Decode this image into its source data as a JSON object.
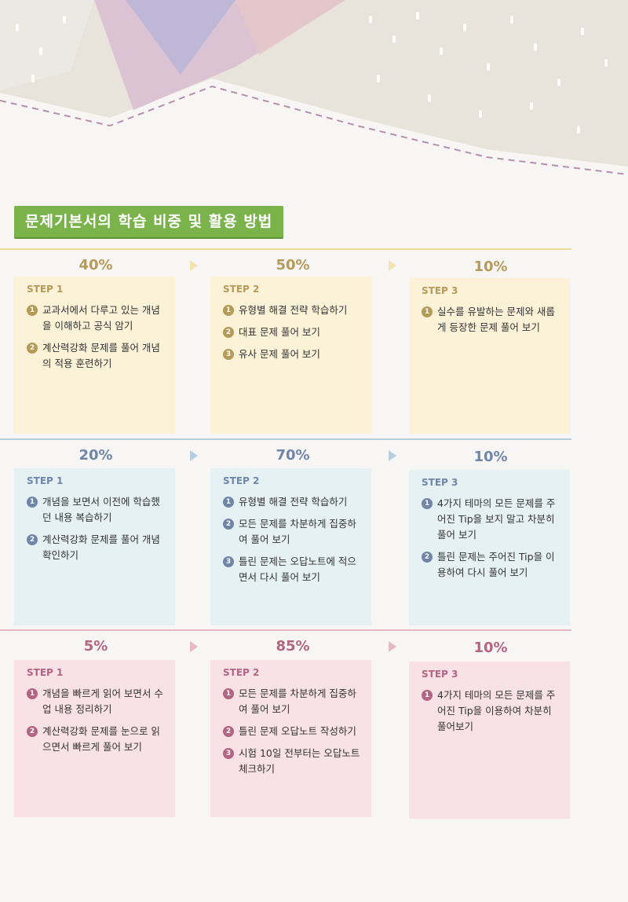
{
  "section_title": "문제기본서의 학습 비중 및 활용 방법",
  "colors": {
    "title_bg": "#79b34a",
    "row1_accent": "#b59a58",
    "row1_card": "#fbf2d8",
    "row1_line": "#eedb9c",
    "row2_accent": "#6f86a8",
    "row2_card": "#e6f1f4",
    "row2_line": "#b6cfe0",
    "row3_accent": "#b36482",
    "row3_card": "#f9e2e6",
    "row3_line": "#e8b9c5"
  },
  "rows": [
    {
      "steps": [
        {
          "percent": "40%",
          "label": "STEP 1",
          "items": [
            {
              "num": "1",
              "text": "교과서에서 다루고 있는 개념을 이해하고 공식 암기"
            },
            {
              "num": "2",
              "text": "계산력강화 문제를 풀어 개념의 적용 훈련하기"
            }
          ]
        },
        {
          "percent": "50%",
          "label": "STEP 2",
          "items": [
            {
              "num": "1",
              "text": "유형별 해결 전략 학습하기"
            },
            {
              "num": "2",
              "text": "대표 문제 풀어 보기"
            },
            {
              "num": "3",
              "text": "유사 문제 풀어 보기"
            }
          ]
        },
        {
          "percent": "10%",
          "label": "STEP 3",
          "items": [
            {
              "num": "1",
              "text": "실수를 유발하는 문제와 새롭게 등장한 문제 풀어 보기"
            }
          ]
        }
      ]
    },
    {
      "steps": [
        {
          "percent": "20%",
          "label": "STEP 1",
          "items": [
            {
              "num": "1",
              "text": "개념을 보면서 이전에 학습했던 내용 복습하기"
            },
            {
              "num": "2",
              "text": "계산력강화 문제를 풀어 개념 확인하기"
            }
          ]
        },
        {
          "percent": "70%",
          "label": "STEP 2",
          "items": [
            {
              "num": "1",
              "text": "유형별 해결 전략 학습하기"
            },
            {
              "num": "2",
              "text": "모든 문제를 차분하게 집중하여 풀어 보기"
            },
            {
              "num": "3",
              "text": "틀린 문제는 오답노트에 적으면서 다시 풀어 보기"
            }
          ]
        },
        {
          "percent": "10%",
          "label": "STEP 3",
          "items": [
            {
              "num": "1",
              "text": "4가지 테마의 모든 문제를 주어진 Tip을 보지 말고 차분히 풀어 보기"
            },
            {
              "num": "2",
              "text": "틀린 문제는 주어진 Tip을 이용하여 다시 풀어 보기"
            }
          ]
        }
      ]
    },
    {
      "steps": [
        {
          "percent": "5%",
          "label": "STEP 1",
          "items": [
            {
              "num": "1",
              "text": "개념을 빠르게 읽어 보면서 수업 내용 정리하기"
            },
            {
              "num": "2",
              "text": "계산력강화 문제를 눈으로 읽으면서 빠르게 풀어 보기"
            }
          ]
        },
        {
          "percent": "85%",
          "label": "STEP 2",
          "items": [
            {
              "num": "1",
              "text": "모든 문제를 차분하게 집중하여 풀어 보기"
            },
            {
              "num": "2",
              "text": "틀린 문제 오답노트 작성하기"
            },
            {
              "num": "3",
              "text": "시험 10일 전부터는 오답노트 체크하기"
            }
          ]
        },
        {
          "percent": "10%",
          "label": "STEP 3",
          "items": [
            {
              "num": "1",
              "text": "4가지 테마의 모든 문제를 주어진 Tip을 이용하여 차분히 풀어보기"
            }
          ]
        }
      ]
    }
  ]
}
